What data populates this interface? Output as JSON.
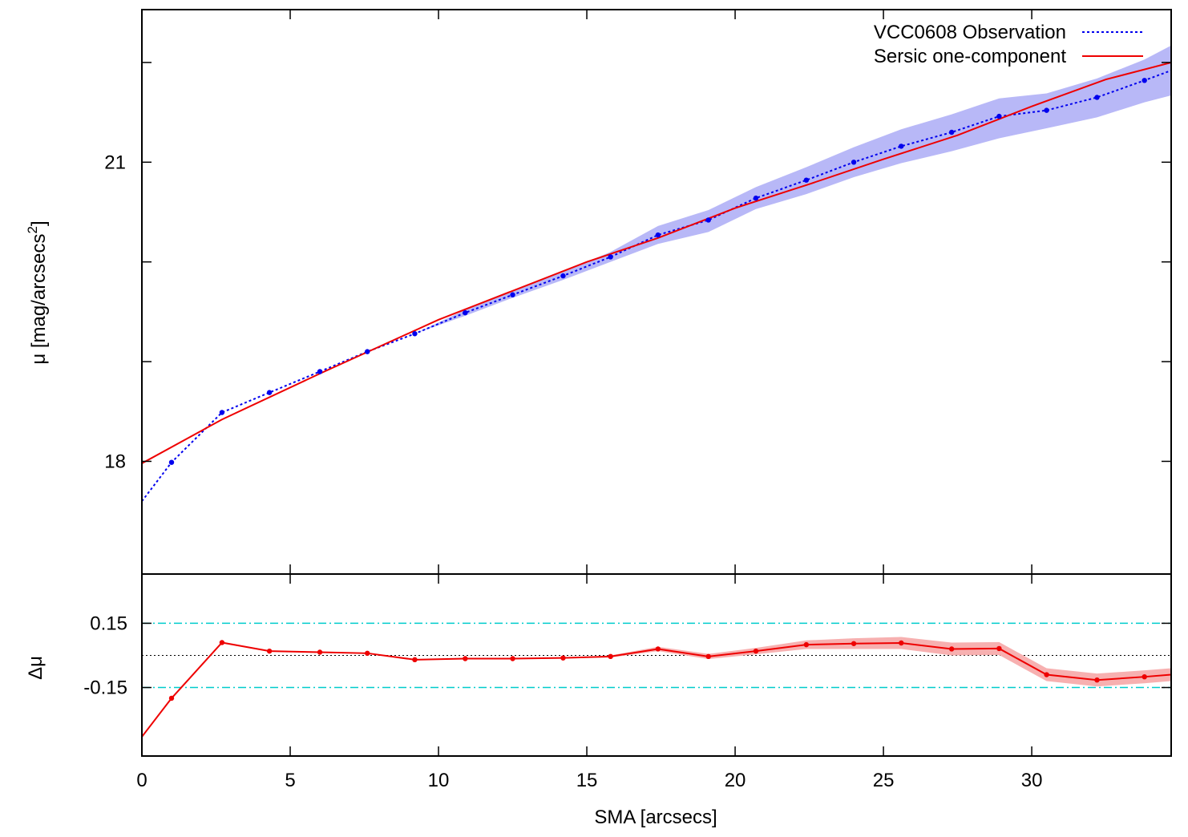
{
  "chart_data": [
    {
      "type": "line",
      "panel": "main",
      "ylabel_main": "μ [mag/arcsecs",
      "ylabel_sup": "2",
      "ylabel_tail": "]",
      "xlim": [
        0,
        34.7
      ],
      "ylim": [
        22.53,
        16.87
      ],
      "y_inverted": true,
      "yticks": [
        18,
        19,
        20,
        21,
        22
      ],
      "ytick_labels": {
        "18": "18",
        "21": "21"
      },
      "xticks": [
        0,
        5,
        10,
        15,
        20,
        25,
        30
      ],
      "legend": {
        "position": "top-right",
        "entries": [
          "VCC0608 Observation",
          "Sersic one-component"
        ]
      },
      "series": [
        {
          "name": "VCC0608 Observation",
          "style": "dotted-points",
          "color": "#0000ee",
          "band_color": "#b8b8f7",
          "x": [
            0,
            1.0,
            2.7,
            4.3,
            6.0,
            7.6,
            9.2,
            10.9,
            12.5,
            14.2,
            15.8,
            17.4,
            19.1,
            20.7,
            22.4,
            24.0,
            25.6,
            27.3,
            28.9,
            30.5,
            32.2,
            33.8,
            34.7
          ],
          "y": [
            17.6,
            17.99,
            18.49,
            18.69,
            18.9,
            19.1,
            19.28,
            19.49,
            19.67,
            19.86,
            20.05,
            20.27,
            20.42,
            20.64,
            20.82,
            21.0,
            21.16,
            21.3,
            21.46,
            21.52,
            21.65,
            21.82,
            21.92
          ],
          "band_lower": [
            17.6,
            17.99,
            18.49,
            18.69,
            18.9,
            19.1,
            19.28,
            19.46,
            19.64,
            19.82,
            20.0,
            20.18,
            20.3,
            20.53,
            20.68,
            20.85,
            20.99,
            21.11,
            21.24,
            21.34,
            21.45,
            21.6,
            21.67
          ],
          "band_upper": [
            17.6,
            17.99,
            18.49,
            18.69,
            18.9,
            19.1,
            19.28,
            19.52,
            19.71,
            19.9,
            20.1,
            20.36,
            20.52,
            20.75,
            20.95,
            21.15,
            21.33,
            21.48,
            21.64,
            21.69,
            21.84,
            22.03,
            22.17
          ]
        },
        {
          "name": "Sersic one-component",
          "style": "solid",
          "color": "#ee0000",
          "x": [
            0,
            2.7,
            6.0,
            10.0,
            15.0,
            17.4,
            20.0,
            22.5,
            25.0,
            27.5,
            30.0,
            32.5,
            34.7
          ],
          "y": [
            17.98,
            18.42,
            18.88,
            19.42,
            20.0,
            20.24,
            20.54,
            20.78,
            21.03,
            21.27,
            21.56,
            21.83,
            22.0
          ]
        }
      ]
    },
    {
      "type": "line",
      "panel": "residual",
      "xlabel": "SMA [arcsecs]",
      "ylabel": "Δμ",
      "xlim": [
        0,
        34.7
      ],
      "ylim": [
        -0.47,
        0.38
      ],
      "yticks": [
        0.15,
        -0.15
      ],
      "ytick_labels": [
        "0.15",
        "-0.15"
      ],
      "xticks": [
        0,
        5,
        10,
        15,
        20,
        25,
        30
      ],
      "xtick_labels": [
        "0",
        "5",
        "10",
        "15",
        "20",
        "25",
        "30"
      ],
      "reference_lines": [
        {
          "y": 0.15,
          "style": "dash-dot",
          "color": "#00cccc"
        },
        {
          "y": -0.15,
          "style": "dash-dot",
          "color": "#00cccc"
        },
        {
          "y": 0,
          "style": "dotted",
          "color": "#000000"
        }
      ],
      "series": [
        {
          "name": "",
          "color": "#ee0000",
          "band_color": "#f7b0b0",
          "x": [
            0,
            1.0,
            2.7,
            4.3,
            6.0,
            7.6,
            9.2,
            10.9,
            12.5,
            14.2,
            15.8,
            17.4,
            19.1,
            20.7,
            22.4,
            24.0,
            25.6,
            27.3,
            28.9,
            30.5,
            32.2,
            33.8,
            34.7
          ],
          "y": [
            -0.38,
            -0.2,
            0.06,
            0.02,
            0.015,
            0.01,
            -0.02,
            -0.015,
            -0.015,
            -0.012,
            -0.005,
            0.03,
            -0.005,
            0.02,
            0.05,
            0.055,
            0.058,
            0.03,
            0.032,
            -0.09,
            -0.115,
            -0.1,
            -0.09
          ],
          "band_half_width": [
            0,
            0,
            0,
            0,
            0,
            0,
            0,
            0,
            0,
            0,
            0.005,
            0.01,
            0.012,
            0.015,
            0.02,
            0.025,
            0.028,
            0.03,
            0.03,
            0.03,
            0.03,
            0.03,
            0.03
          ]
        }
      ]
    }
  ],
  "legend_labels": {
    "observation": "VCC0608 Observation",
    "sersic": "Sersic one-component"
  },
  "axis_labels": {
    "x": "SMA [arcsecs]",
    "y_residual": "Δμ"
  }
}
